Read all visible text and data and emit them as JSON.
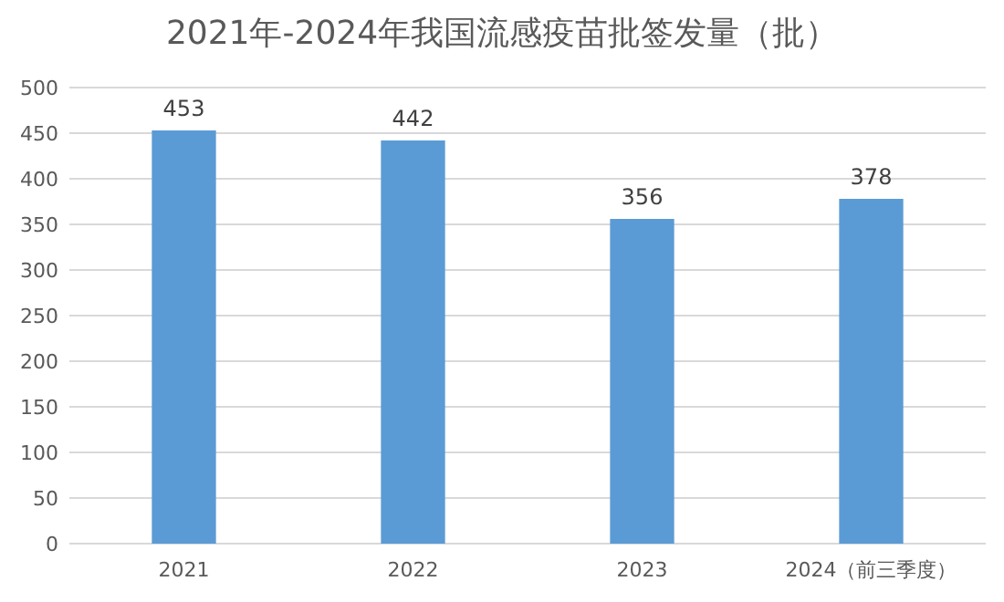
{
  "chart_data": {
    "type": "bar",
    "title": "2021年-2024年我国流感疫苗批签发量（批）",
    "categories": [
      "2021",
      "2022",
      "2023",
      "2024（前三季度）"
    ],
    "values": [
      453,
      442,
      356,
      378
    ],
    "color": "#5b9bd5",
    "ylim": [
      0,
      500
    ],
    "yticks": [
      0,
      50,
      100,
      150,
      200,
      250,
      300,
      350,
      400,
      450,
      500
    ],
    "grid": "y",
    "data_labels": true
  }
}
